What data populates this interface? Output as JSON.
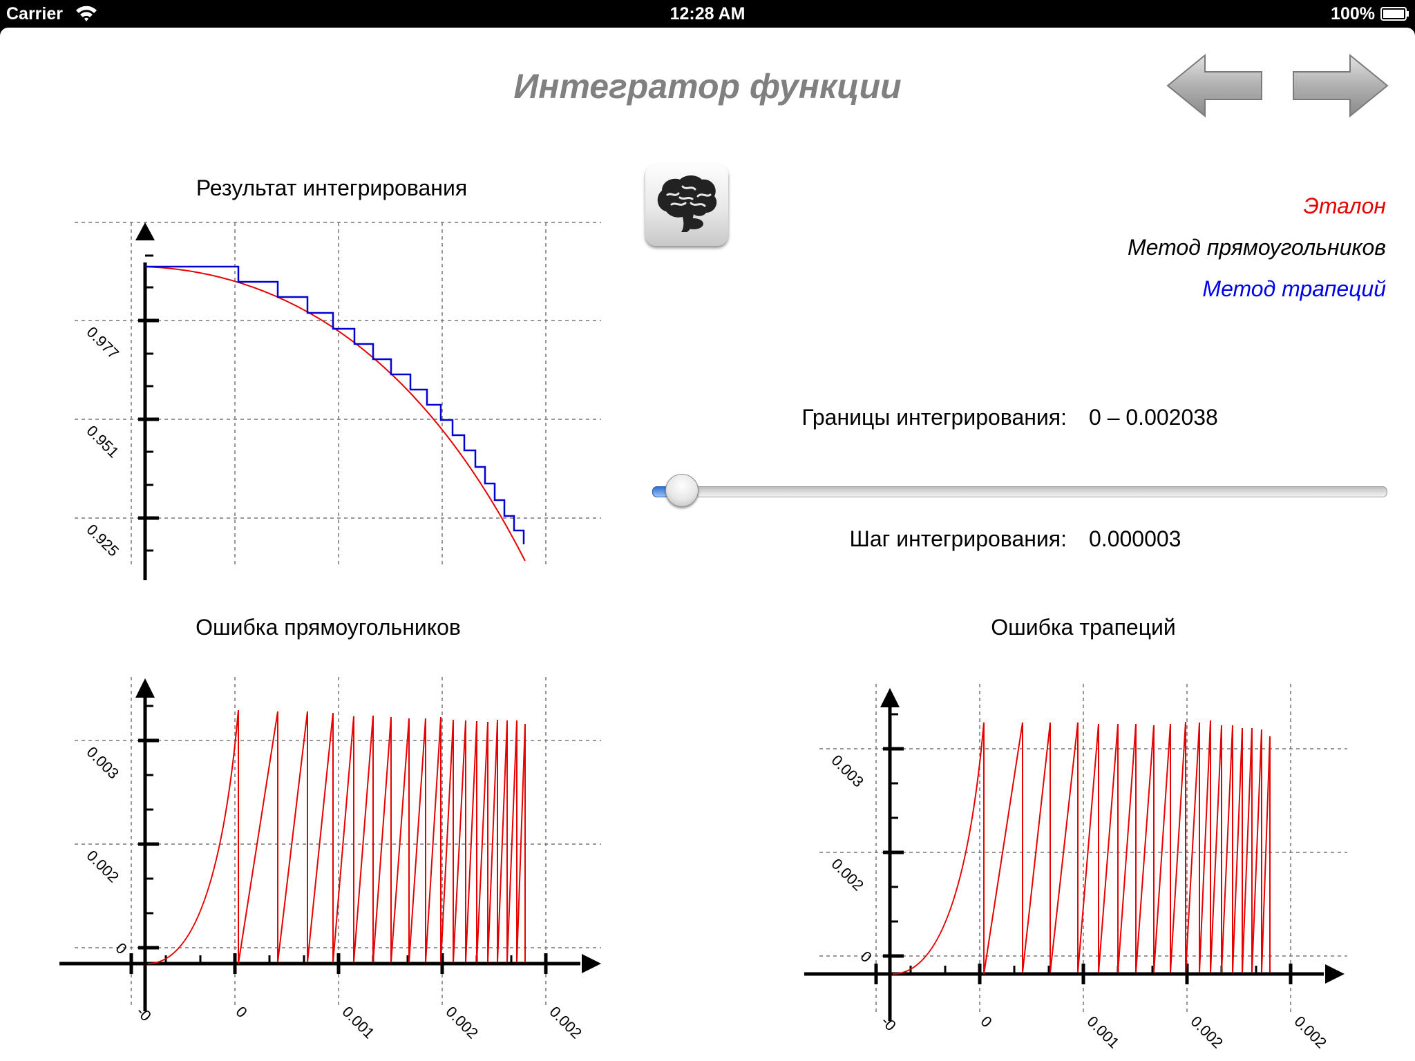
{
  "status_bar": {
    "carrier": "Carrier",
    "time": "12:28 AM",
    "battery": "100%"
  },
  "header": {
    "title": "Интегратор функции",
    "back_icon": "arrow-left-icon",
    "forward_icon": "arrow-right-icon"
  },
  "brain_button": {
    "icon": "brain-icon"
  },
  "legend": {
    "reference": "Эталон",
    "rect_method": "Метод прямоугольников",
    "trap_method": "Метод трапеций",
    "colors": {
      "reference": "#e60000",
      "rect_method": "#000000",
      "trap_method": "#0000e6"
    }
  },
  "controls": {
    "bounds_label": "Границы интегрирования:",
    "bounds_value": "0 – 0.002038",
    "step_label": "Шаг интегрирования:",
    "step_value": "0.000003",
    "slider_value": 0.04
  },
  "charts": {
    "result": {
      "title": "Результат интегрирования",
      "y_ticks": [
        "0.977",
        "0.951",
        "0.925"
      ]
    },
    "rect_error": {
      "title": "Ошибка прямоугольников",
      "y_ticks": [
        "0.003",
        "0.002",
        "0"
      ],
      "x_ticks": [
        "-0",
        "0",
        "0.001",
        "0.002",
        "0.002"
      ]
    },
    "trap_error": {
      "title": "Ошибка трапеций",
      "y_ticks": [
        "0.003",
        "0.002",
        "0"
      ],
      "x_ticks": [
        "-0",
        "0",
        "0.001",
        "0.002",
        "0.002"
      ]
    }
  }
}
